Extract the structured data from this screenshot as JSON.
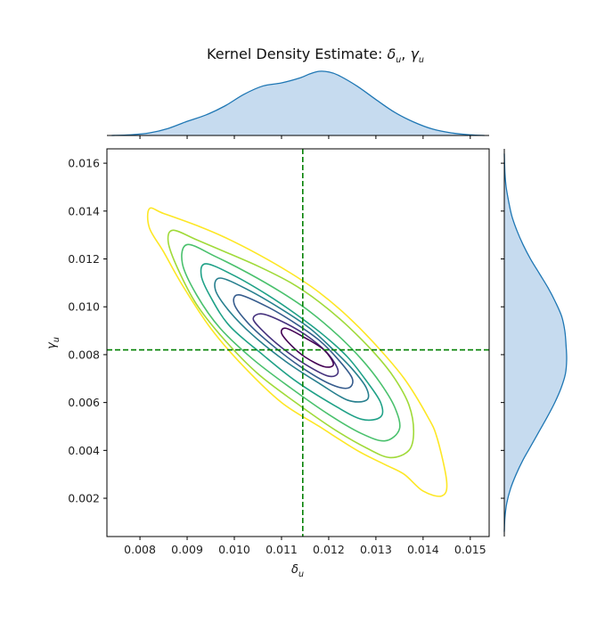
{
  "chart_data": {
    "type": "kde-joint",
    "title_main": "Kernel Density Estimate: ",
    "title_sym1": "δ",
    "title_sub1": "u",
    "title_sep": ", ",
    "title_sym2": "γ",
    "title_sub2": "u",
    "xlabel_sym": "δ",
    "xlabel_sub": "u",
    "ylabel_sym": "γ",
    "ylabel_sub": "u",
    "xlim": [
      0.0073,
      0.0154
    ],
    "ylim": [
      0.0004,
      0.0166
    ],
    "x_ticks": [
      "0.008",
      "0.009",
      "0.010",
      "0.011",
      "0.012",
      "0.013",
      "0.014",
      "0.015"
    ],
    "y_ticks": [
      "0.002",
      "0.004",
      "0.006",
      "0.008",
      "0.010",
      "0.012",
      "0.014",
      "0.016"
    ],
    "reference_lines": {
      "x": 0.01145,
      "y": 0.0082,
      "color": "#008000",
      "style": "dashed"
    },
    "contours": [
      {
        "level": 1,
        "color": "#fde725",
        "points": [
          [
            0.0082,
            0.0141
          ],
          [
            0.0085,
            0.0139
          ],
          [
            0.0092,
            0.0134
          ],
          [
            0.0098,
            0.0129
          ],
          [
            0.0105,
            0.0122
          ],
          [
            0.0112,
            0.0114
          ],
          [
            0.0118,
            0.0106
          ],
          [
            0.0124,
            0.0096
          ],
          [
            0.013,
            0.0084
          ],
          [
            0.0136,
            0.007
          ],
          [
            0.0141,
            0.0054
          ],
          [
            0.0143,
            0.0045
          ],
          [
            0.0145,
            0.0027
          ],
          [
            0.0144,
            0.0021
          ],
          [
            0.014,
            0.0023
          ],
          [
            0.0136,
            0.003
          ],
          [
            0.0132,
            0.0034
          ],
          [
            0.0126,
            0.004
          ],
          [
            0.0118,
            0.005
          ],
          [
            0.011,
            0.006
          ],
          [
            0.0102,
            0.0075
          ],
          [
            0.0095,
            0.0091
          ],
          [
            0.0089,
            0.0109
          ],
          [
            0.0085,
            0.0123
          ],
          [
            0.0082,
            0.0133
          ]
        ]
      },
      {
        "level": 2,
        "color": "#a0da39",
        "points": [
          [
            0.0087,
            0.0132
          ],
          [
            0.0092,
            0.0128
          ],
          [
            0.0098,
            0.0123
          ],
          [
            0.0105,
            0.0117
          ],
          [
            0.0112,
            0.011
          ],
          [
            0.0118,
            0.0102
          ],
          [
            0.0124,
            0.0092
          ],
          [
            0.013,
            0.008
          ],
          [
            0.0134,
            0.007
          ],
          [
            0.0137,
            0.0059
          ],
          [
            0.0138,
            0.0048
          ],
          [
            0.0137,
            0.004
          ],
          [
            0.0133,
            0.0037
          ],
          [
            0.0128,
            0.0041
          ],
          [
            0.0121,
            0.0049
          ],
          [
            0.0113,
            0.006
          ],
          [
            0.0105,
            0.0072
          ],
          [
            0.0098,
            0.0086
          ],
          [
            0.0092,
            0.0101
          ],
          [
            0.0088,
            0.0116
          ],
          [
            0.0086,
            0.0127
          ]
        ]
      },
      {
        "level": 3,
        "color": "#4ac16d",
        "points": [
          [
            0.009,
            0.0126
          ],
          [
            0.0096,
            0.0121
          ],
          [
            0.0103,
            0.0114
          ],
          [
            0.011,
            0.0106
          ],
          [
            0.0116,
            0.0098
          ],
          [
            0.0122,
            0.0088
          ],
          [
            0.0127,
            0.0078
          ],
          [
            0.0131,
            0.0068
          ],
          [
            0.0134,
            0.0058
          ],
          [
            0.0135,
            0.0049
          ],
          [
            0.0132,
            0.0044
          ],
          [
            0.0127,
            0.0047
          ],
          [
            0.012,
            0.0055
          ],
          [
            0.0112,
            0.0066
          ],
          [
            0.0104,
            0.0078
          ],
          [
            0.0097,
            0.0091
          ],
          [
            0.0092,
            0.0105
          ],
          [
            0.0089,
            0.0118
          ]
        ]
      },
      {
        "level": 4,
        "color": "#1fa187",
        "points": [
          [
            0.0094,
            0.0118
          ],
          [
            0.01,
            0.0113
          ],
          [
            0.0107,
            0.0105
          ],
          [
            0.0113,
            0.0097
          ],
          [
            0.0119,
            0.0088
          ],
          [
            0.0124,
            0.0079
          ],
          [
            0.0128,
            0.0069
          ],
          [
            0.0131,
            0.006
          ],
          [
            0.0131,
            0.0054
          ],
          [
            0.0127,
            0.0053
          ],
          [
            0.0121,
            0.0059
          ],
          [
            0.0113,
            0.0069
          ],
          [
            0.0106,
            0.008
          ],
          [
            0.0099,
            0.0092
          ],
          [
            0.0095,
            0.0104
          ],
          [
            0.0093,
            0.0113
          ]
        ]
      },
      {
        "level": 5,
        "color": "#277f8e",
        "points": [
          [
            0.0097,
            0.0112
          ],
          [
            0.0103,
            0.0107
          ],
          [
            0.011,
            0.0099
          ],
          [
            0.0116,
            0.0091
          ],
          [
            0.0121,
            0.0082
          ],
          [
            0.0125,
            0.0074
          ],
          [
            0.0128,
            0.0066
          ],
          [
            0.0128,
            0.0061
          ],
          [
            0.0124,
            0.0061
          ],
          [
            0.0118,
            0.0068
          ],
          [
            0.0111,
            0.0077
          ],
          [
            0.0104,
            0.0088
          ],
          [
            0.0099,
            0.0098
          ],
          [
            0.0096,
            0.0107
          ]
        ]
      },
      {
        "level": 6,
        "color": "#365c8d",
        "points": [
          [
            0.0101,
            0.0105
          ],
          [
            0.0107,
            0.01
          ],
          [
            0.0113,
            0.0093
          ],
          [
            0.0118,
            0.0086
          ],
          [
            0.0122,
            0.0078
          ],
          [
            0.0125,
            0.007
          ],
          [
            0.0124,
            0.0066
          ],
          [
            0.012,
            0.0068
          ],
          [
            0.0114,
            0.0075
          ],
          [
            0.0108,
            0.0084
          ],
          [
            0.0103,
            0.0093
          ],
          [
            0.01,
            0.0101
          ]
        ]
      },
      {
        "level": 7,
        "color": "#46337e",
        "points": [
          [
            0.0106,
            0.0097
          ],
          [
            0.0111,
            0.0093
          ],
          [
            0.0116,
            0.0087
          ],
          [
            0.012,
            0.008
          ],
          [
            0.0122,
            0.0073
          ],
          [
            0.012,
            0.0071
          ],
          [
            0.0115,
            0.0076
          ],
          [
            0.011,
            0.0083
          ],
          [
            0.0106,
            0.009
          ],
          [
            0.0104,
            0.0095
          ]
        ]
      },
      {
        "level": 8,
        "color": "#440154",
        "points": [
          [
            0.0111,
            0.0091
          ],
          [
            0.0115,
            0.0087
          ],
          [
            0.0119,
            0.0082
          ],
          [
            0.0121,
            0.0076
          ],
          [
            0.0119,
            0.0075
          ],
          [
            0.0115,
            0.0079
          ],
          [
            0.0112,
            0.0084
          ],
          [
            0.011,
            0.0089
          ]
        ]
      }
    ],
    "marginal_x": {
      "color": "#1f77b4",
      "fill": "#c6dbef",
      "x": [
        0.0074,
        0.0078,
        0.0082,
        0.0086,
        0.009,
        0.0094,
        0.0098,
        0.0102,
        0.0106,
        0.011,
        0.0114,
        0.0116,
        0.0118,
        0.012,
        0.0122,
        0.0126,
        0.013,
        0.0134,
        0.0138,
        0.0142,
        0.0146,
        0.015,
        0.0153
      ],
      "density": [
        0.0,
        0.01,
        0.04,
        0.11,
        0.22,
        0.32,
        0.46,
        0.64,
        0.77,
        0.82,
        0.9,
        0.96,
        1.0,
        0.99,
        0.94,
        0.77,
        0.56,
        0.36,
        0.21,
        0.1,
        0.04,
        0.01,
        0.0
      ]
    },
    "marginal_y": {
      "color": "#1f77b4",
      "fill": "#c6dbef",
      "y": [
        0.0006,
        0.0012,
        0.0018,
        0.0024,
        0.003,
        0.0036,
        0.0042,
        0.0048,
        0.0054,
        0.006,
        0.0066,
        0.0072,
        0.0078,
        0.0084,
        0.009,
        0.0096,
        0.0102,
        0.0108,
        0.0114,
        0.012,
        0.0126,
        0.0132,
        0.0138,
        0.0144,
        0.015,
        0.0156,
        0.0164
      ],
      "density": [
        0.0,
        0.01,
        0.04,
        0.1,
        0.19,
        0.3,
        0.43,
        0.56,
        0.69,
        0.81,
        0.91,
        0.98,
        1.0,
        0.99,
        0.97,
        0.92,
        0.82,
        0.7,
        0.56,
        0.42,
        0.3,
        0.2,
        0.12,
        0.07,
        0.03,
        0.01,
        0.0
      ]
    }
  }
}
